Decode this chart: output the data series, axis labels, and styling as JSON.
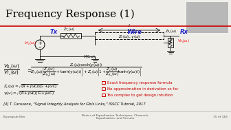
{
  "title": "Frequency Response (1)",
  "title_color": "#000000",
  "title_fontsize": 11,
  "bg_color": "#eeede8",
  "red_line_color": "#cc0000",
  "tx_label": "Tx",
  "rx_label": "Rx",
  "wire_label": "Wire",
  "tx_color": "#2222cc",
  "rx_color": "#2222cc",
  "wire_color": "#2222cc",
  "bullet1": "Exact frequency response formula",
  "bullet2": "No approximation in derivation so far",
  "bullet3": "Too complex to get design intuition",
  "bullet_color": "#cc0000",
  "ref_text": "[4] T. Carusone, “Signal Integrity Analysis for Gb/s Links,” ISSCC Tutorial, 2017",
  "footer_left": "Byungsub Kim",
  "footer_center": "Basics of Equalization Techniques: Channels,\nEqualization, and Circuits",
  "footer_right": "15 of 182",
  "footer_color": "#555555"
}
